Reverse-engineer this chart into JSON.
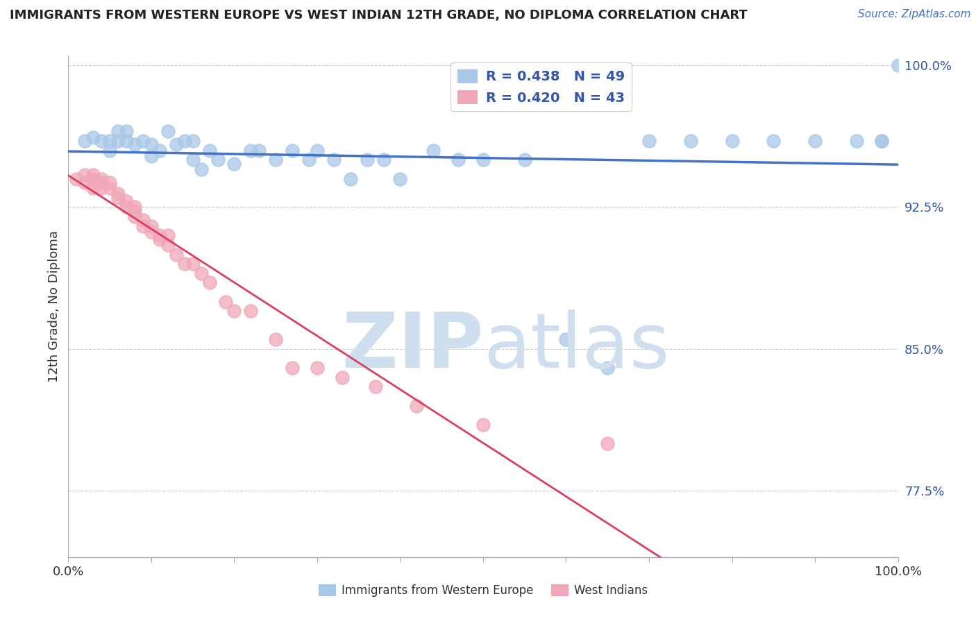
{
  "title": "IMMIGRANTS FROM WESTERN EUROPE VS WEST INDIAN 12TH GRADE, NO DIPLOMA CORRELATION CHART",
  "source": "Source: ZipAtlas.com",
  "ylabel": "12th Grade, No Diploma",
  "xlim": [
    0.0,
    1.0
  ],
  "ylim": [
    0.74,
    1.005
  ],
  "yticks": [
    0.775,
    0.85,
    0.925,
    1.0
  ],
  "ytick_labels": [
    "77.5%",
    "85.0%",
    "92.5%",
    "100.0%"
  ],
  "xticks": [
    0.0,
    0.1,
    0.2,
    0.3,
    0.4,
    0.5,
    0.6,
    0.7,
    0.8,
    0.9,
    1.0
  ],
  "xtick_labels": [
    "0.0%",
    "",
    "",
    "",
    "",
    "",
    "",
    "",
    "",
    "",
    "100.0%"
  ],
  "legend_blue_R": "R = 0.438",
  "legend_blue_N": "N = 49",
  "legend_pink_R": "R = 0.420",
  "legend_pink_N": "N = 43",
  "blue_color": "#A8C8E8",
  "pink_color": "#F0A8B8",
  "blue_line_color": "#4472C4",
  "pink_line_color": "#D94060",
  "legend_text_color": "#3355AA",
  "tick_color": "#3355AA",
  "background_color": "#FFFFFF",
  "blue_scatter_x": [
    0.02,
    0.03,
    0.04,
    0.05,
    0.05,
    0.06,
    0.06,
    0.07,
    0.07,
    0.08,
    0.09,
    0.1,
    0.1,
    0.11,
    0.12,
    0.13,
    0.14,
    0.15,
    0.15,
    0.16,
    0.17,
    0.18,
    0.2,
    0.22,
    0.23,
    0.25,
    0.27,
    0.29,
    0.3,
    0.32,
    0.34,
    0.36,
    0.38,
    0.4,
    0.44,
    0.47,
    0.5,
    0.55,
    0.6,
    0.65,
    0.7,
    0.75,
    0.8,
    0.85,
    0.9,
    0.95,
    0.98,
    0.98,
    1.0
  ],
  "blue_scatter_y": [
    0.96,
    0.962,
    0.96,
    0.96,
    0.955,
    0.965,
    0.96,
    0.965,
    0.96,
    0.958,
    0.96,
    0.958,
    0.952,
    0.955,
    0.965,
    0.958,
    0.96,
    0.96,
    0.95,
    0.945,
    0.955,
    0.95,
    0.948,
    0.955,
    0.955,
    0.95,
    0.955,
    0.95,
    0.955,
    0.95,
    0.94,
    0.95,
    0.95,
    0.94,
    0.955,
    0.95,
    0.95,
    0.95,
    0.855,
    0.84,
    0.96,
    0.96,
    0.96,
    0.96,
    0.96,
    0.96,
    0.96,
    0.96,
    1.0
  ],
  "pink_scatter_x": [
    0.01,
    0.02,
    0.02,
    0.03,
    0.03,
    0.03,
    0.03,
    0.04,
    0.04,
    0.04,
    0.05,
    0.05,
    0.06,
    0.06,
    0.07,
    0.07,
    0.08,
    0.08,
    0.08,
    0.09,
    0.09,
    0.1,
    0.1,
    0.11,
    0.11,
    0.12,
    0.12,
    0.13,
    0.14,
    0.15,
    0.16,
    0.17,
    0.19,
    0.2,
    0.22,
    0.25,
    0.27,
    0.3,
    0.33,
    0.37,
    0.42,
    0.5,
    0.65
  ],
  "pink_scatter_y": [
    0.94,
    0.942,
    0.938,
    0.942,
    0.94,
    0.938,
    0.935,
    0.94,
    0.938,
    0.935,
    0.938,
    0.935,
    0.932,
    0.93,
    0.928,
    0.925,
    0.923,
    0.925,
    0.92,
    0.918,
    0.915,
    0.912,
    0.915,
    0.908,
    0.91,
    0.91,
    0.905,
    0.9,
    0.895,
    0.895,
    0.89,
    0.885,
    0.875,
    0.87,
    0.87,
    0.855,
    0.84,
    0.84,
    0.835,
    0.83,
    0.82,
    0.81,
    0.8
  ],
  "blue_line_x0": 0.0,
  "blue_line_x1": 1.0,
  "pink_line_x0": 0.0,
  "pink_line_x1": 1.0
}
